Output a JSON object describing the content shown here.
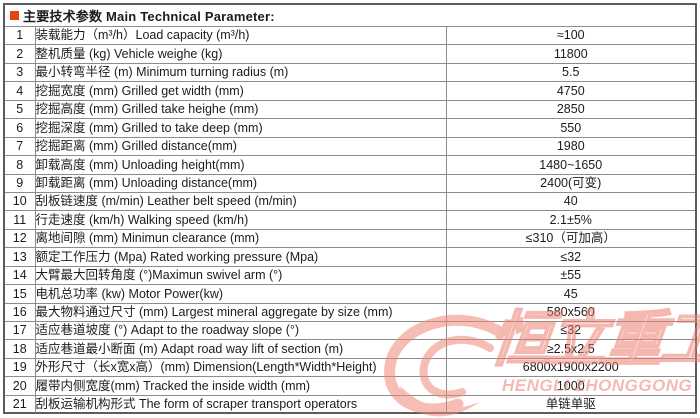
{
  "header": {
    "title": "主要技术参数 Main Technical Parameter:",
    "bullet_color": "#e8420e"
  },
  "table": {
    "rows": [
      {
        "no": "1",
        "param": "装载能力（m³/h）Load capacity (m³/h)",
        "value": "≈100"
      },
      {
        "no": "2",
        "param": "整机质量 (kg) Vehicle weighe (kg)",
        "value": "11800"
      },
      {
        "no": "3",
        "param": "最小转弯半径 (m) Minimum turning radius (m)",
        "value": "5.5"
      },
      {
        "no": "4",
        "param": "挖掘宽度 (mm) Grilled get width (mm)",
        "value": "4750"
      },
      {
        "no": "5",
        "param": "挖掘高度 (mm) Grilled take heighe (mm)",
        "value": "2850"
      },
      {
        "no": "6",
        "param": "挖掘深度 (mm) Grilled to take deep (mm)",
        "value": "550"
      },
      {
        "no": "7",
        "param": "挖掘距离 (mm) Grilled distance(mm)",
        "value": "1980"
      },
      {
        "no": "8",
        "param": "卸载高度 (mm) Unloading height(mm)",
        "value": "1480~1650"
      },
      {
        "no": "9",
        "param": "卸载距离 (mm) Unloading distance(mm)",
        "value": "2400(可变)"
      },
      {
        "no": "10",
        "param": "刮板链速度 (m/min) Leather  belt speed (m/min)",
        "value": "40"
      },
      {
        "no": "11",
        "param": "行走速度 (km/h) Walking speed (km/h)",
        "value": "2.1±5%"
      },
      {
        "no": "12",
        "param": "离地间隙 (mm) Minimun clearance (mm)",
        "value": "≤310（可加高）"
      },
      {
        "no": "13",
        "param": "额定工作压力 (Mpa) Rated working pressure (Mpa)",
        "value": "≤32"
      },
      {
        "no": "14",
        "param": "大臂最大回转角度 (°)Maximun swivel arm (°)",
        "value": "±55"
      },
      {
        "no": "15",
        "param": "电机总功率 (kw) Motor Power(kw)",
        "value": "45"
      },
      {
        "no": "16",
        "param": "最大物料通过尺寸 (mm) Largest mineral aggregate by size (mm)",
        "value": "580x560"
      },
      {
        "no": "17",
        "param": "适应巷道坡度 (°) Adapt to the roadway slope (°)",
        "value": "≤32"
      },
      {
        "no": "18",
        "param": "适应巷道最小断面 (m) Adapt road way lift of section (m)",
        "value": "≥2.5x2.5"
      },
      {
        "no": "19",
        "param": "外形尺寸（长x宽x高）(mm) Dimension(Length*Width*Height)",
        "value": "6800x1900x2200"
      },
      {
        "no": "20",
        "param": "履带内侧宽度(mm) Tracked the inside width (mm)",
        "value": "1000"
      },
      {
        "no": "21",
        "param": "刮板运输机构形式 The form of scraper transport operators",
        "value": "单链单驱"
      }
    ]
  },
  "watermark": {
    "cn": "恒立重工",
    "en": "HENGLI ZHONGGONG",
    "color": "#ec7f70"
  }
}
